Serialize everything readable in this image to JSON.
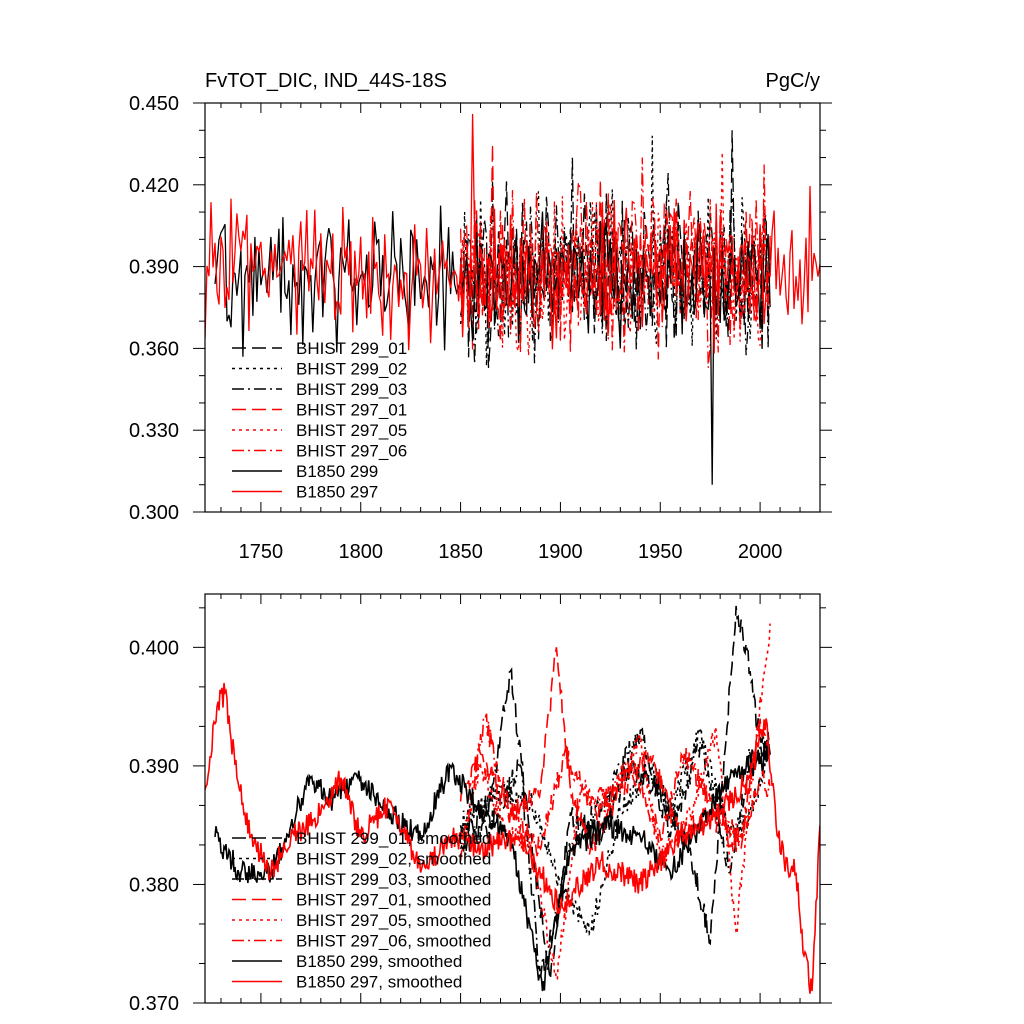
{
  "chart_data": [
    {
      "type": "line",
      "title": "FvTOT_DIC, IND_44S-18S",
      "units": "PgC/y",
      "xlim": [
        1722,
        2030
      ],
      "ylim": [
        0.3,
        0.45
      ],
      "xticks": [
        1750,
        1800,
        1850,
        1900,
        1950,
        2000
      ],
      "yticks": [
        0.3,
        0.33,
        0.36,
        0.39,
        0.42,
        0.45
      ],
      "ytick_labels": [
        "0.300",
        "0.330",
        "0.360",
        "0.390",
        "0.420",
        "0.450"
      ],
      "grid": false,
      "legend_position": "bottom-left",
      "series": [
        {
          "name": "BHIST 299_01",
          "color": "#000000",
          "dash": "long-dash",
          "x_range": [
            1850,
            2005
          ],
          "mean": 0.388,
          "amplitude": 0.022,
          "peak_max": 0.44
        },
        {
          "name": "BHIST 299_02",
          "color": "#000000",
          "dash": "dot",
          "x_range": [
            1850,
            2005
          ],
          "mean": 0.388,
          "amplitude": 0.022,
          "peak_max": 0.438
        },
        {
          "name": "BHIST 299_03",
          "color": "#000000",
          "dash": "dash-dot",
          "x_range": [
            1850,
            2005
          ],
          "mean": 0.388,
          "amplitude": 0.022,
          "peak_max": 0.43
        },
        {
          "name": "BHIST 297_01",
          "color": "#ff0000",
          "dash": "long-dash",
          "x_range": [
            1850,
            2005
          ],
          "mean": 0.389,
          "amplitude": 0.022,
          "peak_max": 0.435
        },
        {
          "name": "BHIST 297_05",
          "color": "#ff0000",
          "dash": "dot",
          "x_range": [
            1850,
            2005
          ],
          "mean": 0.389,
          "amplitude": 0.022,
          "peak_max": 0.432
        },
        {
          "name": "BHIST 297_06",
          "color": "#ff0000",
          "dash": "dash-dot",
          "x_range": [
            1850,
            2005
          ],
          "mean": 0.389,
          "amplitude": 0.022,
          "peak_max": 0.43
        },
        {
          "name": "B1850 299",
          "color": "#000000",
          "dash": "solid",
          "x_range": [
            1727,
            2005
          ],
          "mean": 0.386,
          "amplitude": 0.018,
          "min_point": [
            1976,
            0.31
          ]
        },
        {
          "name": "B1850 297",
          "color": "#ff0000",
          "dash": "solid",
          "x_range": [
            1722,
            2030
          ],
          "mean": 0.387,
          "amplitude": 0.019,
          "peak_max": 0.446
        }
      ]
    },
    {
      "type": "line",
      "title": "",
      "xlim": [
        1722,
        2030
      ],
      "ylim": [
        0.37,
        0.4045
      ],
      "xticks": [
        1750,
        1800,
        1850,
        1900,
        1950,
        2000
      ],
      "yticks": [
        0.37,
        0.38,
        0.39,
        0.4
      ],
      "ytick_labels": [
        "0.370",
        "0.380",
        "0.390",
        "0.400"
      ],
      "grid": false,
      "legend_position": "bottom-left",
      "series": [
        {
          "name": "BHIST 299_01, smoothed",
          "color": "#000000",
          "dash": "long-dash",
          "x_range": [
            1850,
            2005
          ],
          "keypoints": [
            [
              1850,
              0.384
            ],
            [
              1865,
              0.387
            ],
            [
              1875,
              0.398
            ],
            [
              1885,
              0.384
            ],
            [
              1895,
              0.372
            ],
            [
              1905,
              0.386
            ],
            [
              1920,
              0.384
            ],
            [
              1935,
              0.39
            ],
            [
              1950,
              0.388
            ],
            [
              1965,
              0.383
            ],
            [
              1975,
              0.375
            ],
            [
              1985,
              0.397
            ],
            [
              1988,
              0.4035
            ],
            [
              1995,
              0.398
            ],
            [
              2000,
              0.392
            ],
            [
              2005,
              0.391
            ]
          ]
        },
        {
          "name": "BHIST 299_02, smoothed",
          "color": "#000000",
          "dash": "dot",
          "x_range": [
            1850,
            2005
          ],
          "keypoints": [
            [
              1850,
              0.385
            ],
            [
              1870,
              0.388
            ],
            [
              1885,
              0.387
            ],
            [
              1900,
              0.38
            ],
            [
              1915,
              0.376
            ],
            [
              1930,
              0.386
            ],
            [
              1945,
              0.39
            ],
            [
              1955,
              0.386
            ],
            [
              1970,
              0.393
            ],
            [
              1985,
              0.384
            ],
            [
              1995,
              0.386
            ],
            [
              2005,
              0.391
            ]
          ]
        },
        {
          "name": "BHIST 299_03, smoothed",
          "color": "#000000",
          "dash": "dash-dot",
          "x_range": [
            1850,
            2005
          ],
          "keypoints": [
            [
              1850,
              0.383
            ],
            [
              1865,
              0.385
            ],
            [
              1880,
              0.39
            ],
            [
              1890,
              0.372
            ],
            [
              1905,
              0.383
            ],
            [
              1925,
              0.388
            ],
            [
              1940,
              0.393
            ],
            [
              1955,
              0.384
            ],
            [
              1970,
              0.392
            ],
            [
              1985,
              0.381
            ],
            [
              1995,
              0.391
            ],
            [
              2005,
              0.392
            ]
          ]
        },
        {
          "name": "BHIST 297_01, smoothed",
          "color": "#ff0000",
          "dash": "long-dash",
          "x_range": [
            1850,
            2005
          ],
          "keypoints": [
            [
              1850,
              0.387
            ],
            [
              1860,
              0.391
            ],
            [
              1875,
              0.386
            ],
            [
              1890,
              0.388
            ],
            [
              1898,
              0.4
            ],
            [
              1905,
              0.388
            ],
            [
              1915,
              0.383
            ],
            [
              1930,
              0.388
            ],
            [
              1945,
              0.391
            ],
            [
              1960,
              0.384
            ],
            [
              1975,
              0.386
            ],
            [
              1990,
              0.383
            ],
            [
              2000,
              0.394
            ],
            [
              2005,
              0.391
            ]
          ]
        },
        {
          "name": "BHIST 297_05, smoothed",
          "color": "#ff0000",
          "dash": "dot",
          "x_range": [
            1850,
            2005
          ],
          "keypoints": [
            [
              1850,
              0.384
            ],
            [
              1860,
              0.39
            ],
            [
              1872,
              0.385
            ],
            [
              1885,
              0.383
            ],
            [
              1898,
              0.372
            ],
            [
              1910,
              0.388
            ],
            [
              1925,
              0.387
            ],
            [
              1940,
              0.392
            ],
            [
              1950,
              0.382
            ],
            [
              1965,
              0.386
            ],
            [
              1978,
              0.393
            ],
            [
              1988,
              0.376
            ],
            [
              1998,
              0.392
            ],
            [
              2005,
              0.402
            ]
          ]
        },
        {
          "name": "BHIST 297_06, smoothed",
          "color": "#ff0000",
          "dash": "dash-dot",
          "x_range": [
            1850,
            2005
          ],
          "keypoints": [
            [
              1850,
              0.382
            ],
            [
              1862,
              0.394
            ],
            [
              1875,
              0.386
            ],
            [
              1890,
              0.383
            ],
            [
              1902,
              0.391
            ],
            [
              1918,
              0.386
            ],
            [
              1935,
              0.39
            ],
            [
              1950,
              0.384
            ],
            [
              1962,
              0.391
            ],
            [
              1975,
              0.387
            ],
            [
              1990,
              0.384
            ],
            [
              2000,
              0.389
            ],
            [
              2005,
              0.388
            ]
          ]
        },
        {
          "name": "B1850 299, smoothed",
          "color": "#000000",
          "dash": "solid",
          "x_range": [
            1727,
            2005
          ],
          "keypoints": [
            [
              1727,
              0.384
            ],
            [
              1740,
              0.381
            ],
            [
              1755,
              0.381
            ],
            [
              1765,
              0.385
            ],
            [
              1775,
              0.389
            ],
            [
              1785,
              0.387
            ],
            [
              1800,
              0.389
            ],
            [
              1815,
              0.386
            ],
            [
              1830,
              0.384
            ],
            [
              1845,
              0.39
            ],
            [
              1860,
              0.386
            ],
            [
              1875,
              0.384
            ],
            [
              1891,
              0.371
            ],
            [
              1905,
              0.383
            ],
            [
              1925,
              0.385
            ],
            [
              1940,
              0.384
            ],
            [
              1955,
              0.381
            ],
            [
              1970,
              0.385
            ],
            [
              1985,
              0.389
            ],
            [
              1995,
              0.39
            ],
            [
              2005,
              0.391
            ]
          ]
        },
        {
          "name": "B1850 297, smoothed",
          "color": "#ff0000",
          "dash": "solid",
          "x_range": [
            1722,
            2030
          ],
          "keypoints": [
            [
              1722,
              0.388
            ],
            [
              1728,
              0.395
            ],
            [
              1732,
              0.3962
            ],
            [
              1738,
              0.389
            ],
            [
              1745,
              0.384
            ],
            [
              1755,
              0.381
            ],
            [
              1765,
              0.384
            ],
            [
              1780,
              0.386
            ],
            [
              1790,
              0.389
            ],
            [
              1800,
              0.384
            ],
            [
              1815,
              0.387
            ],
            [
              1830,
              0.381
            ],
            [
              1845,
              0.384
            ],
            [
              1860,
              0.383
            ],
            [
              1880,
              0.384
            ],
            [
              1900,
              0.378
            ],
            [
              1920,
              0.382
            ],
            [
              1940,
              0.38
            ],
            [
              1960,
              0.384
            ],
            [
              1980,
              0.386
            ],
            [
              1995,
              0.389
            ],
            [
              2003,
              0.394
            ],
            [
              2008,
              0.385
            ],
            [
              2012,
              0.382
            ],
            [
              2018,
              0.381
            ],
            [
              2022,
              0.374
            ],
            [
              2026,
              0.371
            ],
            [
              2030,
              0.385
            ]
          ]
        }
      ]
    }
  ]
}
